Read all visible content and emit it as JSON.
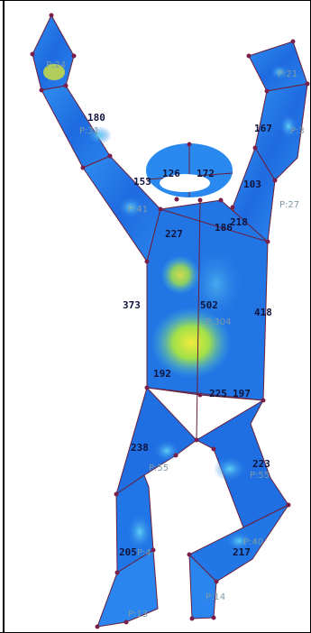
{
  "labels": {
    "n180": "180",
    "n167": "167",
    "n126": "126",
    "n172": "172",
    "n153": "153",
    "n103": "103",
    "n227": "227",
    "n186": "186",
    "n218": "218",
    "n373": "373",
    "n502": "502",
    "n418": "418",
    "n192": "192",
    "n225": "225",
    "n197": "197",
    "n238": "238",
    "n223": "223",
    "n205": "205",
    "n217": "217"
  },
  "pressure": {
    "p24": "P:24",
    "p21": "P:21",
    "p31": "P:31",
    "p3": "P:3",
    "p41": "P:41",
    "p27": "P:27",
    "p304": "P:304",
    "p55a": "P:55",
    "p55b": "P:55",
    "p40": "P:40",
    "p4": "P:4",
    "p14": "P:14",
    "p13": "P:13"
  },
  "colors": {
    "body_blue": "#1e6be0",
    "body_cyan": "#3fb7f3",
    "hot_yellow": "#e8e23a",
    "hot_green": "#7fdc4a",
    "outline": "#6a1f3a",
    "node": "#7a1e4a"
  }
}
